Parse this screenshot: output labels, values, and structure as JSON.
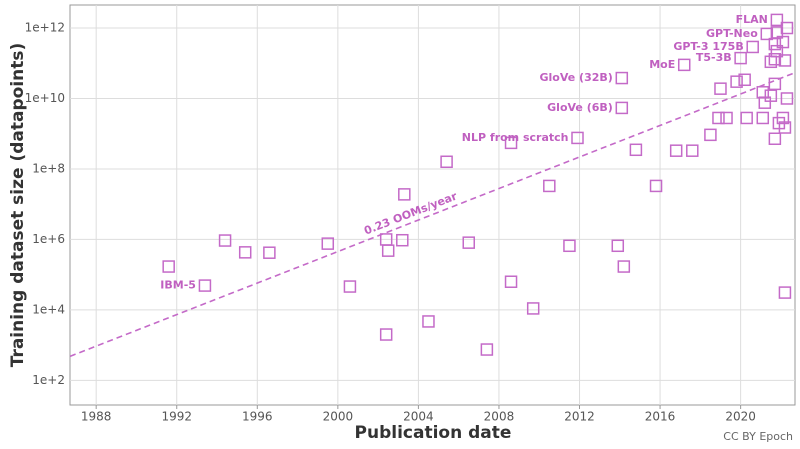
{
  "chart_data": {
    "type": "scatter",
    "x_label": "Publication date",
    "y_label": "Training dataset size (datapoints)",
    "credit": "CC BY Epoch",
    "color": "#c46ac8",
    "log_y": true,
    "grid": true,
    "xlim": [
      1986.7,
      2022.7
    ],
    "ylim": [
      20,
      4500000000000
    ],
    "xticks": [
      1988,
      1992,
      1996,
      2000,
      2004,
      2008,
      2012,
      2016,
      2020
    ],
    "yticks": [
      {
        "value": 100,
        "label": "1e+2"
      },
      {
        "value": 10000,
        "label": "1e+4"
      },
      {
        "value": 1000000,
        "label": "1e+6"
      },
      {
        "value": 100000000,
        "label": "1e+8"
      },
      {
        "value": 10000000000,
        "label": "1e+10"
      },
      {
        "value": 1000000000000,
        "label": "1e+12"
      }
    ],
    "x": [
      1991.6,
      1993.4,
      1994.4,
      1995.4,
      1996.6,
      1999.5,
      2000.6,
      2002.4,
      2002.4,
      2002.5,
      2003.2,
      2003.3,
      2004.5,
      2005.4,
      2006.5,
      2007.4,
      2008.6,
      2008.6,
      2009.7,
      2010.5,
      2011.5,
      2011.9,
      2013.9,
      2014.1,
      2014.1,
      2014.2,
      2014.8,
      2015.8,
      2016.8,
      2017.2,
      2017.6,
      2018.5,
      2018.9,
      2019.0,
      2019.3,
      2019.8,
      2020.0,
      2020.2,
      2020.3,
      2020.6,
      2021.1,
      2021.1,
      2021.2,
      2021.3,
      2021.5,
      2021.7,
      2021.7,
      2021.8,
      2021.9,
      2022.1,
      2022.2,
      2022.2,
      2022.3,
      2021.8,
      2021.7,
      2021.5,
      2022.1,
      2022.3,
      2021.8,
      2022.2,
      2021.7
    ],
    "values": [
      170000,
      49000,
      930000,
      430000,
      420000,
      760000,
      46000,
      2000,
      1000000,
      480000,
      950000,
      19000000,
      4700,
      160000000,
      810000,
      750,
      63000,
      550000000,
      11000,
      33000000,
      660000,
      760000000,
      660000,
      38000000000,
      5400000000,
      170000,
      350000000,
      33000000,
      330000000,
      90000000000,
      330000000,
      930000000,
      2800000000,
      19000000000,
      2800000000,
      30000000000,
      140000000000,
      34000000000,
      2800000000,
      290000000000,
      2800000000,
      15000000000,
      7600000000,
      680000000000,
      12000000000,
      26000000000,
      720000000,
      1700000000000,
      2000000000,
      2800000000,
      1500000000,
      31000,
      10000000000,
      220000000000,
      130000000000,
      110000000000,
      400000000000,
      1000000000000,
      750000000000,
      120000000000,
      350000000000
    ],
    "point_labels": [
      null,
      "IBM-5",
      null,
      null,
      null,
      null,
      null,
      null,
      null,
      null,
      null,
      null,
      null,
      null,
      null,
      null,
      null,
      null,
      null,
      null,
      null,
      "NLP from scratch",
      null,
      "GloVe (32B)",
      "GloVe (6B)",
      null,
      null,
      null,
      null,
      "MoE",
      null,
      null,
      null,
      null,
      null,
      null,
      "T5-3B",
      null,
      null,
      "GPT-3 175B",
      null,
      null,
      null,
      "GPT-Neo",
      null,
      null,
      null,
      "FLAN",
      null,
      null,
      null,
      null,
      null,
      null,
      null,
      null,
      null,
      null,
      null,
      null,
      null
    ],
    "trend": {
      "label": "0.23 OOMs/year",
      "x": [
        1986.7,
        2022.7
      ],
      "values": [
        480,
        54000000000
      ]
    }
  }
}
